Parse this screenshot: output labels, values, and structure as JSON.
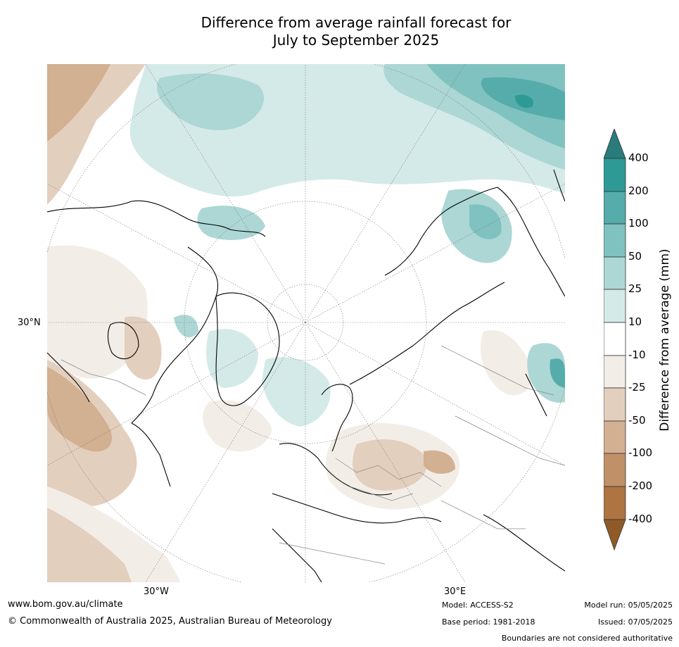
{
  "title_line1": "Difference from average rainfall forecast for",
  "title_line2": "July to September 2025",
  "map": {
    "projection": "north polar stereographic",
    "lat_label": "30°N",
    "lon_labels": [
      "30°W",
      "30°E"
    ]
  },
  "colorbar": {
    "title": "Difference from average (mm)",
    "tick_labels": [
      "400",
      "200",
      "100",
      "50",
      "25",
      "10",
      "-10",
      "-25",
      "-50",
      "-100",
      "-200",
      "-400"
    ],
    "colors": {
      "over": "#2a7c7c",
      "b200_400": "#2e9a96",
      "b100_200": "#56acab",
      "b50_100": "#80c2c0",
      "b25_50": "#acd7d5",
      "b10_25": "#d4eae8",
      "neutral": "#ffffff",
      "n10_25": "#f3ede7",
      "n25_50": "#e3cfbd",
      "n50_100": "#d2b092",
      "n100_200": "#c09068",
      "n200_400": "#ae7442",
      "under": "#8f5a27"
    }
  },
  "footer": {
    "website": "www.bom.gov.au/climate",
    "copyright": "© Commonwealth of Australia 2025, Australian Bureau of Meteorology",
    "model": "Model: ACCESS-S2",
    "base_period": "Base period: 1981-2018",
    "model_run": "Model run: 05/05/2025",
    "issued": "Issued: 07/05/2025",
    "disclaimer": "Boundaries are not considered authoritative"
  }
}
